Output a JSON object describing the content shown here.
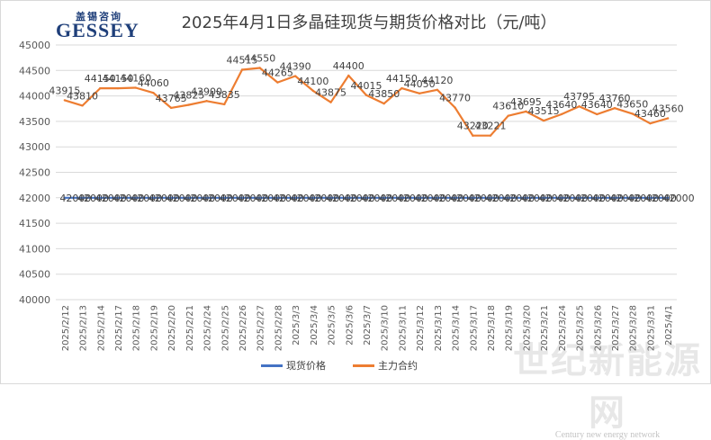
{
  "logo": {
    "cn": "盖锡咨询",
    "en": "GESSEY"
  },
  "title": "2025年4月1日多晶硅现货与期货价格对比（元/吨）",
  "watermark": {
    "cn": "世纪新能源网",
    "en": "Century new energy network"
  },
  "colors": {
    "spot": "#4472c4",
    "futures": "#ed7d31",
    "grid": "#d9d9d9",
    "axis_text": "#595959"
  },
  "chart_data": {
    "type": "line",
    "title": "2025年4月1日多晶硅现货与期货价格对比（元/吨）",
    "categories": [
      "2025/2/12",
      "2025/2/13",
      "2025/2/14",
      "2025/2/17",
      "2025/2/18",
      "2025/2/19",
      "2025/2/20",
      "2025/2/21",
      "2025/2/24",
      "2025/2/25",
      "2025/2/26",
      "2025/2/27",
      "2025/2/28",
      "2025/3/3",
      "2025/3/4",
      "2025/3/5",
      "2025/3/6",
      "2025/3/7",
      "2025/3/10",
      "2025/3/11",
      "2025/3/12",
      "2025/3/13",
      "2025/3/14",
      "2025/3/17",
      "2025/3/18",
      "2025/3/19",
      "2025/3/20",
      "2025/3/21",
      "2025/3/24",
      "2025/3/25",
      "2025/3/26",
      "2025/3/27",
      "2025/3/28",
      "2025/3/31",
      "2025/4/1"
    ],
    "ylim": [
      40000,
      45000
    ],
    "yticks": [
      40000,
      40500,
      41000,
      41500,
      42000,
      42500,
      43000,
      43500,
      44000,
      44500,
      45000
    ],
    "grid": true,
    "legend_position": "bottom",
    "series": [
      {
        "name": "现货价格",
        "values": [
          42000,
          42000,
          42000,
          42000,
          42000,
          42000,
          42000,
          42000,
          42000,
          42000,
          42000,
          42000,
          42000,
          42000,
          42000,
          42000,
          42000,
          42000,
          42000,
          42000,
          42000,
          42000,
          42000,
          42000,
          42000,
          42000,
          42000,
          42000,
          42000,
          42000,
          42000,
          42000,
          42000,
          42000,
          42000
        ]
      },
      {
        "name": "主力合约",
        "values": [
          43915,
          43810,
          44150,
          44150,
          44160,
          44060,
          43765,
          43825,
          43900,
          43835,
          44515,
          44550,
          44265,
          44390,
          44100,
          43875,
          44400,
          44015,
          43850,
          44150,
          44050,
          44120,
          43770,
          43220,
          43221,
          43610,
          43695,
          43515,
          43640,
          43795,
          43640,
          43760,
          43650,
          43460,
          43560
        ]
      }
    ]
  }
}
